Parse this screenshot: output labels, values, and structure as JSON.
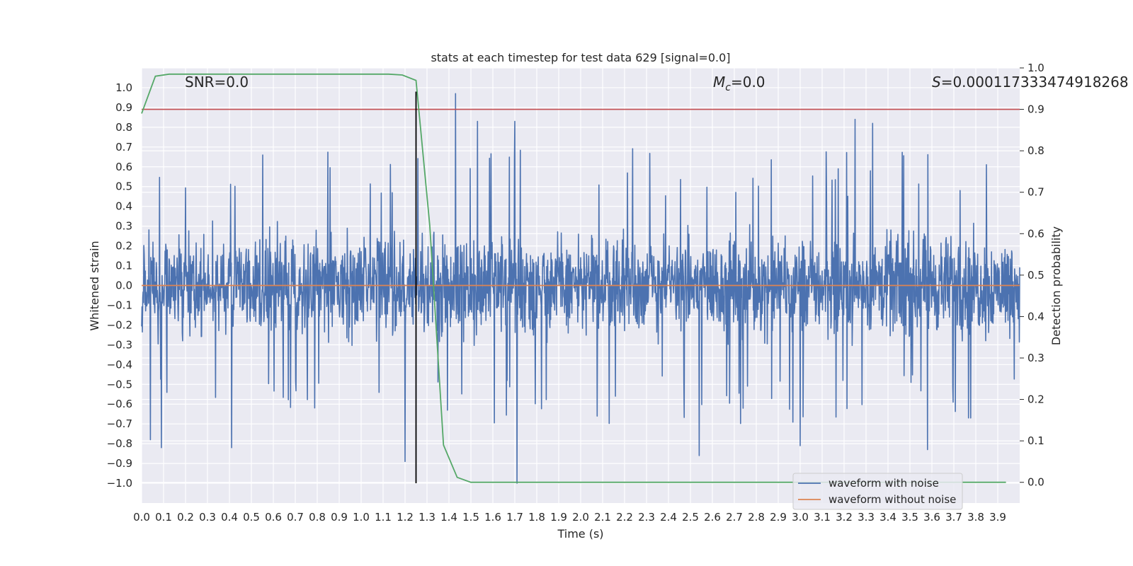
{
  "chart_data": {
    "type": "line",
    "title": "stats at each timestep for test data 629 [signal=0.0]",
    "xlabel": "Time (s)",
    "ylabel": "Whitened strain",
    "y2label": "Detection probability",
    "xlim": [
      0.0,
      4.0
    ],
    "ylim": [
      -1.1,
      1.1
    ],
    "y2lim": [
      -0.05,
      1.0
    ],
    "x_ticks": [
      "0.0",
      "0.1",
      "0.2",
      "0.3",
      "0.4",
      "0.5",
      "0.6",
      "0.7",
      "0.8",
      "0.9",
      "1.0",
      "1.1",
      "1.2",
      "1.3",
      "1.4",
      "1.5",
      "1.6",
      "1.7",
      "1.8",
      "1.9",
      "2.0",
      "2.1",
      "2.2",
      "2.3",
      "2.4",
      "2.5",
      "2.6",
      "2.7",
      "2.8",
      "2.9",
      "3.0",
      "3.1",
      "3.2",
      "3.3",
      "3.4",
      "3.5",
      "3.6",
      "3.7",
      "3.8",
      "3.9"
    ],
    "y_ticks": [
      "1.0",
      "0.9",
      "0.8",
      "0.7",
      "0.6",
      "0.5",
      "0.4",
      "0.3",
      "0.2",
      "0.1",
      "0.0",
      "−0.1",
      "−0.2",
      "−0.3",
      "−0.4",
      "−0.5",
      "−0.6",
      "−0.7",
      "−0.8",
      "−0.9",
      "−1.0"
    ],
    "y2_ticks": [
      "1.0",
      "0.9",
      "0.8",
      "0.7",
      "0.6",
      "0.5",
      "0.4",
      "0.3",
      "0.2",
      "0.1",
      "0.0"
    ],
    "annotations": {
      "snr": "SNR=0.0",
      "mc_symbol": "M",
      "mc_sub": "c",
      "mc_value": "=0.0",
      "s_symbol": "S",
      "s_value": "=0.00011733347491826",
      "s_overlap": "8"
    },
    "legend": {
      "location": "lower right",
      "entries": [
        "waveform with noise",
        "waveform without noise"
      ]
    },
    "series": [
      {
        "name": "waveform with noise",
        "color": "#4c72b0",
        "axis": "left",
        "t_start": 0.0,
        "t_end": 4.0,
        "noise_envelope": 0.35,
        "notable_peaks": [
          {
            "t": 0.04,
            "v": -0.78
          },
          {
            "t": 0.09,
            "v": -0.82
          },
          {
            "t": 0.41,
            "v": -0.82
          },
          {
            "t": 1.2,
            "v": -0.89
          },
          {
            "t": 1.43,
            "v": 0.97
          },
          {
            "t": 1.53,
            "v": 0.83
          },
          {
            "t": 1.7,
            "v": 0.83
          },
          {
            "t": 1.71,
            "v": -1.0
          },
          {
            "t": 2.54,
            "v": -0.86
          },
          {
            "t": 3.0,
            "v": -0.81
          },
          {
            "t": 3.25,
            "v": 0.84
          },
          {
            "t": 3.33,
            "v": 0.82
          },
          {
            "t": 3.58,
            "v": -0.83
          }
        ]
      },
      {
        "name": "waveform without noise",
        "color": "#dd8452",
        "axis": "left",
        "x": [
          0.0,
          4.0
        ],
        "y": [
          0.0,
          0.0
        ]
      },
      {
        "name": "detection probability",
        "color": "#55a868",
        "axis": "right",
        "x": [
          0.0,
          0.0625,
          0.125,
          0.1875,
          0.25,
          0.5,
          0.75,
          1.0,
          1.125,
          1.1875,
          1.25,
          1.3125,
          1.375,
          1.4375,
          1.5,
          2.0,
          3.0,
          3.9375
        ],
        "y": [
          0.89,
          0.98,
          0.985,
          0.985,
          0.985,
          0.985,
          0.985,
          0.985,
          0.985,
          0.983,
          0.97,
          0.62,
          0.09,
          0.012,
          0.0,
          0.0,
          0.0,
          0.0
        ]
      }
    ],
    "threshold_line": {
      "axis": "right",
      "value": 0.9,
      "color": "#c44e52"
    },
    "vline": {
      "x": 1.25,
      "y_from": -1.0,
      "y_to": 0.98,
      "axis": "left",
      "color": "#000000"
    }
  }
}
